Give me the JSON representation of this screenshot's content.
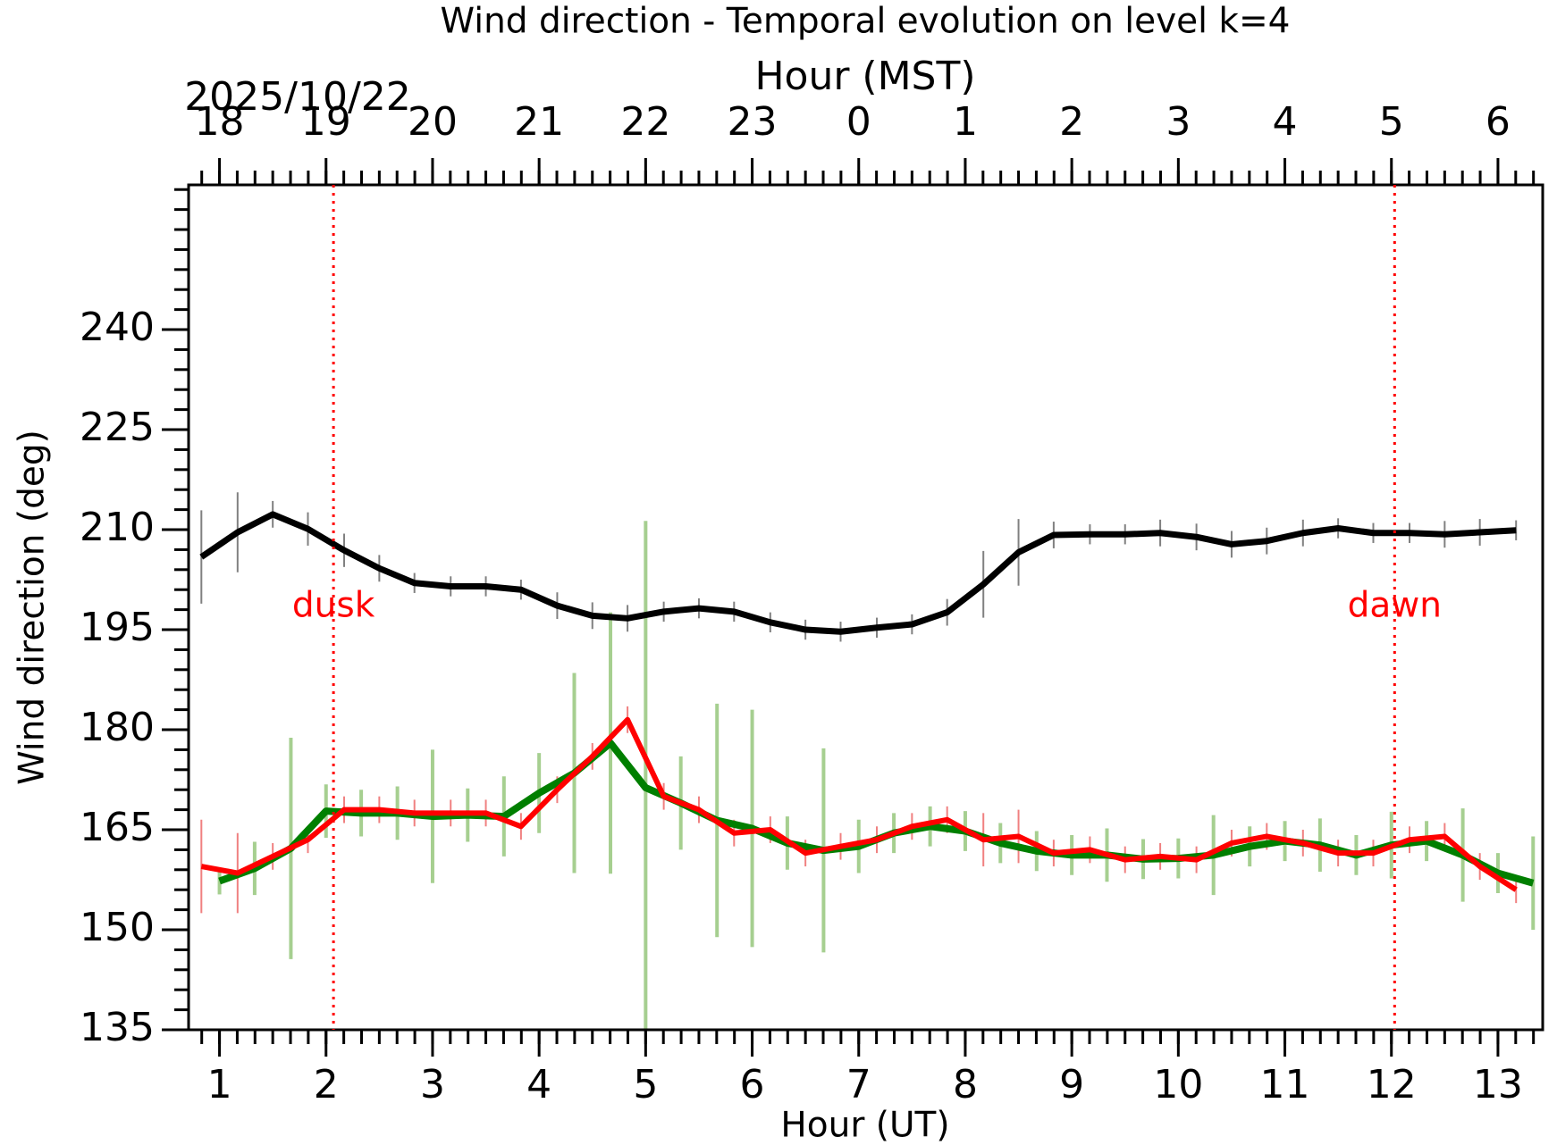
{
  "chart_data": {
    "type": "line",
    "title": "Wind direction - Temporal evolution on level k=4",
    "x2label": "Hour (MST)",
    "x2_date": "2025/10/22",
    "xlabel": "Hour (UT)",
    "ylabel": "Wind direction (deg)",
    "xlim": [
      0.71,
      13.42
    ],
    "ylim": [
      135,
      261.7
    ],
    "xticks": [
      1,
      2,
      3,
      4,
      5,
      6,
      7,
      8,
      9,
      10,
      11,
      12,
      13
    ],
    "x2ticks": [
      {
        "value": 1,
        "label": "18"
      },
      {
        "value": 2,
        "label": "19"
      },
      {
        "value": 3,
        "label": "20"
      },
      {
        "value": 4,
        "label": "21"
      },
      {
        "value": 5,
        "label": "22"
      },
      {
        "value": 6,
        "label": "23"
      },
      {
        "value": 7,
        "label": "0"
      },
      {
        "value": 8,
        "label": "1"
      },
      {
        "value": 9,
        "label": "2"
      },
      {
        "value": 10,
        "label": "3"
      },
      {
        "value": 11,
        "label": "4"
      },
      {
        "value": 12,
        "label": "5"
      },
      {
        "value": 13,
        "label": "6"
      }
    ],
    "yticks": [
      135,
      150,
      165,
      180,
      195,
      210,
      225,
      240
    ],
    "vlines": [
      {
        "x": 2.07,
        "label": "dusk",
        "color": "#ff0000"
      },
      {
        "x": 12.03,
        "label": "dawn",
        "color": "#ff0000"
      }
    ],
    "series": [
      {
        "color": "#000000",
        "error_color": "#808080",
        "x": [
          0.83,
          1.17,
          1.5,
          1.83,
          2.17,
          2.5,
          2.83,
          3.17,
          3.5,
          3.83,
          4.17,
          4.5,
          4.83,
          5.17,
          5.5,
          5.83,
          6.17,
          6.5,
          6.83,
          7.17,
          7.5,
          7.83,
          8.17,
          8.5,
          8.83,
          9.17,
          9.5,
          9.83,
          10.17,
          10.5,
          10.83,
          11.17,
          11.5,
          11.83,
          12.17,
          12.5,
          12.83,
          13.17
        ],
        "values": [
          205.9,
          209.6,
          212.3,
          210.1,
          206.9,
          204.2,
          202,
          201.5,
          201.5,
          201,
          198.6,
          197.1,
          196.7,
          197.7,
          198.2,
          197.7,
          196.1,
          195,
          194.7,
          195.3,
          195.8,
          197.6,
          201.8,
          206.6,
          209.2,
          209.3,
          209.3,
          209.5,
          208.9,
          207.8,
          208.3,
          209.5,
          210.2,
          209.5,
          209.5,
          209.3,
          209.6,
          209.9
        ],
        "errors": [
          7,
          6,
          2,
          2.5,
          2.5,
          2,
          1.5,
          1.5,
          1.5,
          1.5,
          2,
          2,
          2,
          1.5,
          1.5,
          1.5,
          1.5,
          1.5,
          1.5,
          1.5,
          1.5,
          2,
          5,
          5,
          2,
          1.5,
          1.5,
          2,
          2,
          2,
          2,
          2,
          1.5,
          1.5,
          1.5,
          2,
          2,
          1.5
        ]
      },
      {
        "color": "#007f00",
        "error_color": "#a6cf90",
        "x": [
          1,
          1.33,
          1.67,
          2,
          2.33,
          2.67,
          3,
          3.33,
          3.67,
          4,
          4.33,
          4.67,
          5,
          5.33,
          5.67,
          6,
          6.33,
          6.67,
          7,
          7.33,
          7.67,
          8,
          8.33,
          8.67,
          9,
          9.33,
          9.67,
          10,
          10.33,
          10.67,
          11,
          11.33,
          11.67,
          12,
          12.33,
          12.67,
          13,
          13.33
        ],
        "values": [
          157.3,
          159.2,
          162.2,
          167.8,
          167.5,
          167.5,
          167,
          167.2,
          167,
          170.5,
          173.5,
          178,
          171.3,
          169,
          166.4,
          165.2,
          163,
          161.9,
          162.5,
          164.5,
          165.5,
          164.8,
          163,
          161.8,
          161.2,
          161.2,
          160.6,
          160.7,
          161.2,
          162.5,
          163.3,
          162.7,
          161.2,
          162.7,
          163.3,
          161.2,
          158.5,
          157
        ],
        "errors": [
          2,
          4,
          16.6,
          4,
          3.5,
          4,
          10,
          4,
          6,
          6,
          15,
          19.6,
          40,
          7,
          17.5,
          17.8,
          4,
          15.3,
          4,
          3,
          3,
          3,
          3,
          3,
          3,
          4,
          3,
          3,
          6,
          3,
          3,
          4,
          3,
          5,
          3,
          7,
          3,
          7
        ]
      },
      {
        "color": "#ff0000",
        "error_color": "#f08080",
        "x": [
          0.83,
          1.17,
          1.5,
          1.83,
          2.17,
          2.5,
          2.83,
          3.17,
          3.5,
          3.83,
          4.17,
          4.5,
          4.83,
          5.17,
          5.5,
          5.83,
          6.17,
          6.5,
          6.83,
          7.17,
          7.5,
          7.83,
          8.17,
          8.5,
          8.83,
          9.17,
          9.5,
          9.83,
          10.17,
          10.5,
          10.83,
          11.17,
          11.5,
          11.83,
          12.17,
          12.5,
          12.83,
          13.17
        ],
        "values": [
          159.5,
          158.5,
          161,
          163.5,
          168,
          168,
          167.5,
          167.5,
          167.5,
          165.5,
          171,
          176,
          181.5,
          170,
          168,
          164.5,
          165,
          161.5,
          162.5,
          163.5,
          165.5,
          166.5,
          163.5,
          164,
          161.5,
          162,
          160.5,
          161,
          160.5,
          163,
          164,
          163,
          161.5,
          161.5,
          163.5,
          164,
          159.5,
          156
        ],
        "errors": [
          7,
          6,
          2,
          2,
          2,
          2,
          2,
          2,
          2,
          2,
          2,
          2,
          2,
          2,
          2,
          2,
          2,
          2,
          2,
          2,
          2,
          2,
          4,
          4,
          2,
          2,
          2,
          2,
          2,
          2,
          2,
          2,
          2,
          2,
          2,
          2,
          2,
          2
        ]
      }
    ]
  }
}
